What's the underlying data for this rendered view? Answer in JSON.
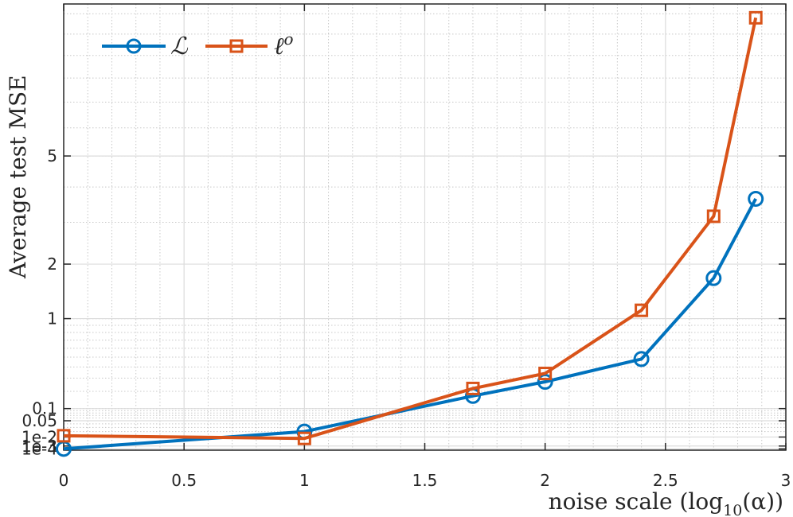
{
  "chart_data": {
    "type": "line",
    "xlabel": "noise scale (log",
    "xlabel_sub": "10",
    "xlabel_tail": "(α))",
    "ylabel": "Average test MSE",
    "xlim": [
      0,
      3
    ],
    "x_ticks": [
      0,
      0.5,
      1,
      1.5,
      2,
      2.5,
      3
    ],
    "x_tick_labels": [
      "0",
      "0.5",
      "1",
      "1.5",
      "2",
      "2.5",
      "3"
    ],
    "y_scale": "sqrt",
    "ylim": [
      0,
      11.5
    ],
    "y_ticks": [
      0.0001,
      0.001,
      0.01,
      0.05,
      0.1,
      1,
      2,
      5
    ],
    "y_tick_labels": [
      "1e-4",
      "1e-3",
      "1e-2",
      "0.05",
      "0.1",
      "1",
      "2",
      "5"
    ],
    "grid": true,
    "legend_position": "top-left",
    "series": [
      {
        "name": "ℒ",
        "color": "#0072BD",
        "marker": "circle",
        "x": [
          0,
          1,
          1.7,
          2,
          2.4,
          2.7,
          2.875
        ],
        "y": [
          0.0001,
          0.02,
          0.17,
          0.27,
          0.48,
          1.71,
          3.65
        ]
      },
      {
        "name": "ℓ",
        "name_sup": "o",
        "color": "#D95319",
        "marker": "square",
        "x": [
          0,
          1,
          1.7,
          2,
          2.4,
          2.7,
          2.875
        ],
        "y": [
          0.012,
          0.008,
          0.22,
          0.34,
          1.13,
          3.16,
          10.8
        ]
      }
    ]
  }
}
